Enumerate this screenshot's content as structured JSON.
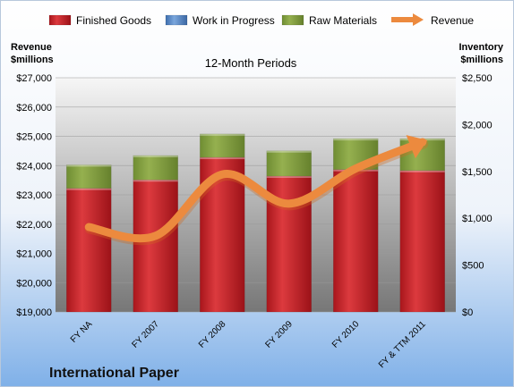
{
  "company": "International Paper",
  "chart_data": {
    "type": "bar",
    "subtype": "stacked-bar-with-line",
    "title": "12-Month Periods",
    "categories": [
      "FY NA",
      "FY 2007",
      "FY 2008",
      "FY 2009",
      "FY 2010",
      "FY & TTM 2011"
    ],
    "left_axis": {
      "label_line1": "Revenue",
      "label_line2": "$millions",
      "min": 19000,
      "max": 27000,
      "ticks": [
        19000,
        20000,
        21000,
        22000,
        23000,
        24000,
        25000,
        26000,
        27000
      ],
      "tick_labels": [
        "$19,000",
        "$20,000",
        "$21,000",
        "$22,000",
        "$23,000",
        "$24,000",
        "$25,000",
        "$26,000",
        "$27,000"
      ]
    },
    "right_axis": {
      "label_line1": "Inventory",
      "label_line2": "$millions",
      "min": 0,
      "max": 2500,
      "ticks": [
        0,
        500,
        1000,
        1500,
        2000,
        2500
      ],
      "tick_labels": [
        "$0",
        "$500",
        "$1,000",
        "$1,500",
        "$2,000",
        "$2,500"
      ]
    },
    "series": [
      {
        "name": "Finished Goods",
        "axis": "right",
        "kind": "bar",
        "color": "#c0232a",
        "values": [
          1320,
          1410,
          1650,
          1450,
          1520,
          1510
        ]
      },
      {
        "name": "Work in Progress",
        "axis": "right",
        "kind": "bar",
        "color": "#4f81bd",
        "values": [
          0,
          0,
          0,
          0,
          0,
          0
        ]
      },
      {
        "name": "Raw Materials",
        "axis": "right",
        "kind": "bar",
        "color": "#7a9a3a",
        "values": [
          250,
          260,
          250,
          270,
          330,
          340
        ]
      },
      {
        "name": "Revenue",
        "axis": "left",
        "kind": "line",
        "color": "#e8883a",
        "values": [
          21900,
          21600,
          23700,
          22700,
          23900,
          24800
        ]
      }
    ],
    "legend_position": "top",
    "grid": true,
    "colors": {
      "bg_top": "#ffffff",
      "bg_bottom": "#7fb0e8",
      "plot_top": "#f4f4f4",
      "plot_bottom": "#7a7a7a"
    }
  }
}
